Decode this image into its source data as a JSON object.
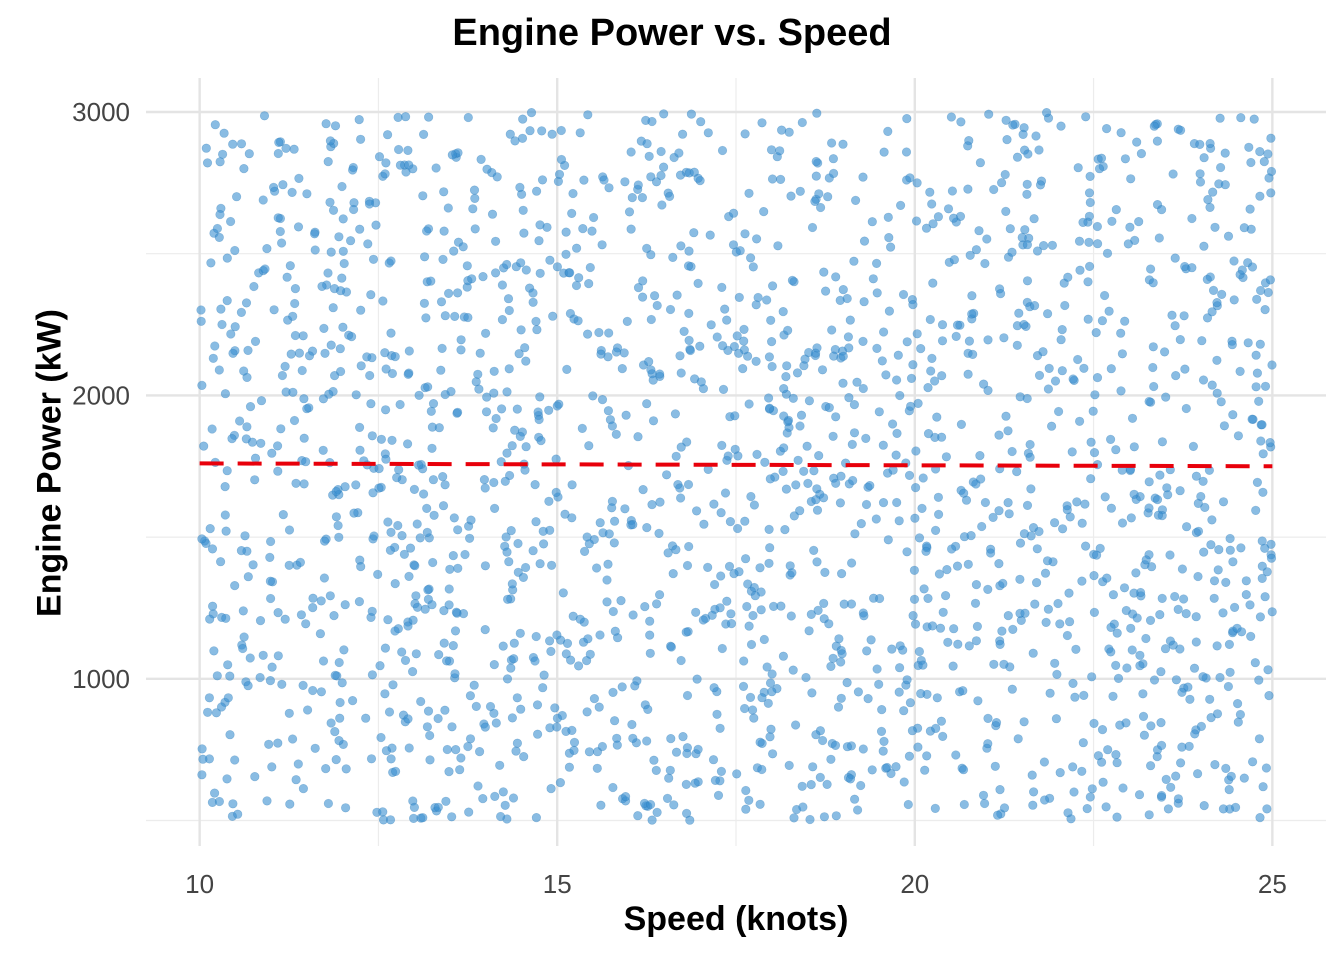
{
  "chart_data": {
    "type": "scatter",
    "title": "Engine Power vs. Speed",
    "xlabel": "Speed (knots)",
    "ylabel": "Engine Power (kW)",
    "xlim": [
      9.25,
      25.75
    ],
    "ylim": [
      410,
      3120
    ],
    "xticks": [
      10,
      15,
      20,
      25
    ],
    "xtick_labels": [
      "10",
      "15",
      "20",
      "25"
    ],
    "yticks": [
      1000,
      2000,
      3000
    ],
    "ytick_labels": [
      "1000",
      "2000",
      "3000"
    ],
    "grid": true,
    "legend": "none",
    "series": [
      {
        "kind": "points",
        "color": "#3A8FD0",
        "count": 2000,
        "x_range": [
          10,
          25
        ],
        "y_range": [
          500,
          3000
        ]
      },
      {
        "kind": "trend-line",
        "style": "dashed",
        "color": "#E8000B",
        "x": [
          10,
          25
        ],
        "y": [
          1760,
          1750
        ]
      }
    ]
  }
}
